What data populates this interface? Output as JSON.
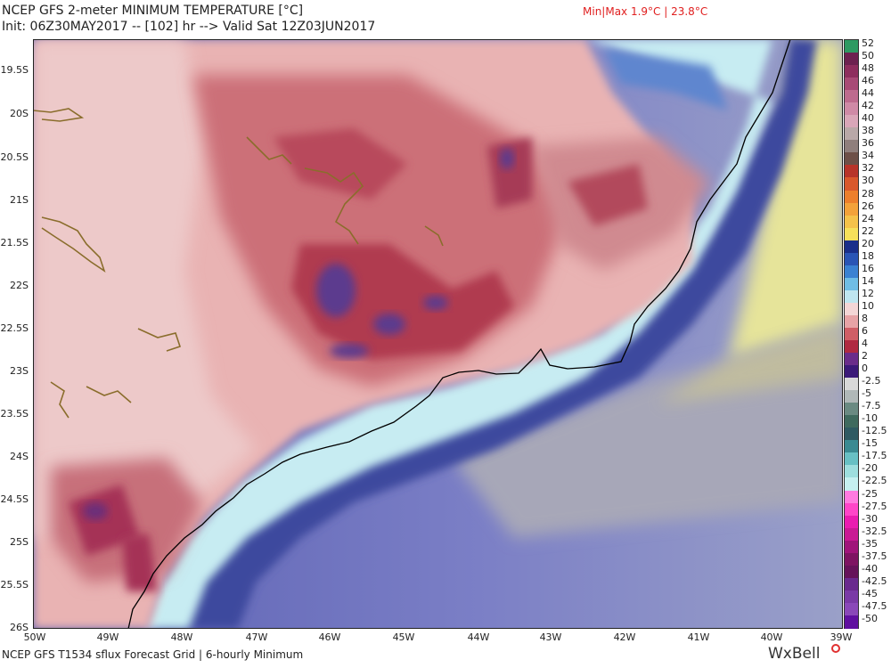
{
  "header": {
    "title": "NCEP GFS 2-meter MINIMUM TEMPERATURE [°C]",
    "subtitle": "Init: 06Z30MAY2017 -- [102] hr --> Valid Sat 12Z03JUN2017",
    "minmax": "Min|Max 1.9°C | 23.8°C"
  },
  "footer": {
    "text": "NCEP GFS T1534 sflux Forecast Grid | 6-hourly Minimum",
    "brand": "WxBell"
  },
  "map": {
    "lat_labels": [
      "19.5S",
      "20S",
      "20.5S",
      "21S",
      "21.5S",
      "22S",
      "22.5S",
      "23S",
      "23.5S",
      "24S",
      "24.5S",
      "25S",
      "25.5S",
      "26S"
    ],
    "lon_labels": [
      "50W",
      "49W",
      "48W",
      "47W",
      "46W",
      "45W",
      "44W",
      "43W",
      "42W",
      "41W",
      "40W",
      "39W"
    ],
    "coastline_color": "#000000",
    "reservoir_color": "#8a6d2c"
  },
  "colorbar": {
    "labels": [
      "52",
      "50",
      "48",
      "46",
      "44",
      "42",
      "40",
      "38",
      "36",
      "34",
      "32",
      "30",
      "28",
      "26",
      "24",
      "22",
      "20",
      "18",
      "16",
      "14",
      "12",
      "10",
      "8",
      "6",
      "4",
      "2",
      "0",
      "-2.5",
      "-5",
      "-7.5",
      "-10",
      "-12.5",
      "-15",
      "-17.5",
      "-20",
      "-22.5",
      "-25",
      "-27.5",
      "-30",
      "-32.5",
      "-35",
      "-37.5",
      "-40",
      "-42.5",
      "-45",
      "-47.5",
      "-50"
    ],
    "colors": [
      "#2e9a62",
      "#6d2250",
      "#8e2e5e",
      "#a84a76",
      "#bd6b8e",
      "#cf8aa6",
      "#d9a6b8",
      "#b9a8a8",
      "#8f7f7c",
      "#6d5048",
      "#b8342a",
      "#d9582c",
      "#ec7f2c",
      "#f3a23a",
      "#f5c24a",
      "#f6e05a",
      "#1a2f8a",
      "#2a55b5",
      "#3b82d2",
      "#6fbde5",
      "#bfe6f0",
      "#f4d6d6",
      "#e7a3a6",
      "#cf5e66",
      "#b02a42",
      "#6a2d8a",
      "#3b1a78",
      "#d8d8d8",
      "#b0b8b8",
      "#6a8a82",
      "#3f6a5e",
      "#2f5a62",
      "#3a8a92",
      "#68c0c4",
      "#9edede",
      "#c6f0f0",
      "#ff7adf",
      "#ff45c8",
      "#ea1cb0",
      "#c91a94",
      "#a0157a",
      "#7e1462",
      "#66135a",
      "#6a2a8e",
      "#7a3aa6",
      "#8a48b8",
      "#6010a0"
    ]
  }
}
